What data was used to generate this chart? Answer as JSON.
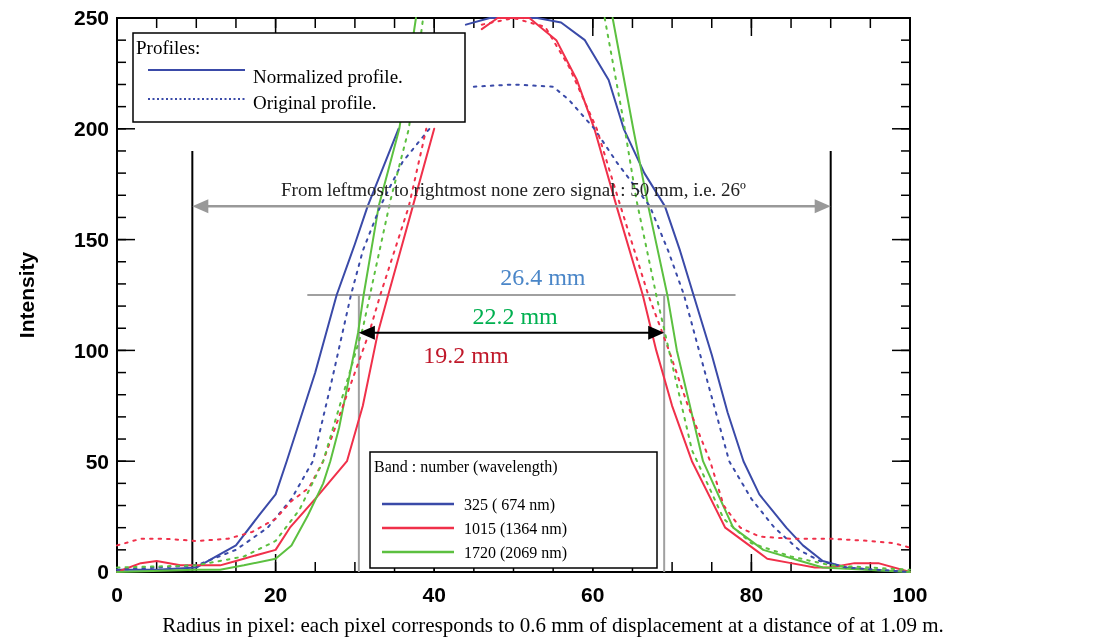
{
  "chart_data": {
    "type": "line",
    "xlabel": "Radius in pixel: each pixel corresponds to 0.6 mm of displacement at a distance of at 1.09 m.",
    "ylabel": "Intensity",
    "legend_title": "Band : number (wavelength)",
    "legend": "bottom",
    "grid": false,
    "xlim": [
      0,
      100
    ],
    "xticks": [
      0,
      20,
      40,
      60,
      80,
      100
    ],
    "ylim": [
      0,
      250
    ],
    "yticks": [
      0,
      50,
      100,
      150,
      200,
      250
    ],
    "series": [
      {
        "name": "325 ( 674 nm)",
        "color": "#3a4aa8",
        "line_style": "solid",
        "x": [
          0,
          5,
          10,
          12,
          15,
          18,
          20,
          21.4,
          25,
          27.7,
          30,
          31.6,
          33.5,
          35.5,
          38,
          41,
          44,
          47,
          50,
          53,
          56,
          59,
          62,
          63.9,
          66.5,
          69.1,
          71,
          72.7,
          75,
          77,
          79,
          81,
          84.4,
          86.5,
          89,
          92,
          95,
          100
        ],
        "values": [
          1,
          1,
          2,
          6,
          12,
          26,
          35,
          50,
          90,
          125,
          148,
          165,
          182,
          200,
          null,
          null,
          247,
          250,
          250,
          250,
          248,
          240,
          222,
          200,
          180,
          165,
          145,
          125,
          98,
          72,
          50,
          35,
          20,
          12,
          5,
          2,
          1,
          0
        ]
      },
      {
        "name": "1015 (1364 nm)",
        "color": "#f0304a",
        "line_style": "solid",
        "x": [
          0,
          3,
          5,
          8,
          10,
          13,
          15,
          18,
          20,
          21.8,
          25,
          29,
          31,
          32.9,
          34.2,
          37.3,
          40,
          43.6,
          46,
          48,
          50,
          52,
          55.4,
          58,
          60.2,
          63,
          66.3,
          68,
          70,
          72.5,
          76.7,
          80.5,
          82,
          85,
          88,
          90,
          93,
          96,
          100
        ],
        "values": [
          0,
          4,
          5,
          3,
          3,
          3,
          5,
          8,
          10,
          20,
          33,
          50,
          75,
          108,
          125,
          165,
          200,
          null,
          245,
          250,
          250,
          250,
          240,
          222,
          200,
          165,
          125,
          100,
          75,
          50,
          20,
          10,
          6,
          4,
          2,
          2,
          4,
          4,
          0
        ]
      },
      {
        "name": "1720 (2069 nm)",
        "color": "#5cc040",
        "line_style": "solid",
        "x": [
          0,
          10,
          13,
          16,
          20,
          22,
          24,
          26,
          26.9,
          28,
          30.4,
          31.1,
          33,
          35.6,
          37.7,
          50,
          62.5,
          65.1,
          67,
          69.4,
          70.6,
          73.9,
          77.7,
          81.5,
          86.2,
          89,
          100
        ],
        "values": [
          0,
          1,
          1,
          3,
          6,
          12,
          25,
          40,
          50,
          65,
          108,
          125,
          165,
          200,
          250,
          null,
          250,
          200,
          165,
          125,
          100,
          50,
          20,
          10,
          5,
          2,
          0
        ]
      },
      {
        "color": "#3a4aa8",
        "line_style": "dotted",
        "x": [
          0,
          10,
          15,
          19,
          22,
          24.7,
          27,
          29.5,
          31,
          33.2,
          36,
          39.4,
          42,
          45,
          50,
          55,
          57,
          60.2,
          63,
          67.2,
          69.5,
          71.5,
          74,
          77.2,
          80,
          82.9,
          86,
          88.6,
          92,
          100
        ],
        "values": [
          1,
          3,
          10,
          20,
          33,
          50,
          85,
          125,
          145,
          165,
          185,
          200,
          null,
          219,
          220,
          219,
          213,
          200,
          185,
          165,
          145,
          125,
          92,
          50,
          33,
          20,
          10,
          5,
          2,
          0
        ]
      },
      {
        "color": "#f0304a",
        "line_style": "dotted",
        "x": [
          0,
          3,
          6,
          10,
          14,
          17,
          20,
          22,
          24.2,
          26,
          28,
          30,
          31.8,
          33.2,
          36.8,
          39,
          42,
          46,
          50,
          54,
          57,
          60.5,
          63.5,
          67,
          69.6,
          72,
          74.8,
          76.5,
          78.6,
          81,
          85,
          90,
          95,
          98,
          100
        ],
        "values": [
          12,
          15,
          15,
          14,
          15,
          18,
          24,
          32,
          38,
          50,
          70,
          90,
          108,
          125,
          165,
          200,
          null,
          247,
          250,
          246,
          228,
          200,
          165,
          125,
          100,
          75,
          50,
          30,
          20,
          16,
          15,
          15,
          14,
          13,
          11
        ]
      },
      {
        "color": "#5cc040",
        "line_style": "dotted",
        "x": [
          0,
          10,
          16,
          20,
          23,
          26,
          28.5,
          31,
          32.5,
          34.5,
          36.8,
          38.6,
          50,
          61.5,
          63.8,
          65.5,
          68,
          72.5,
          76.5,
          80,
          85,
          90,
          100
        ],
        "values": [
          2,
          3,
          7,
          14,
          28,
          50,
          80,
          110,
          135,
          168,
          200,
          250,
          null,
          250,
          205,
          168,
          125,
          55,
          24,
          13,
          7,
          3,
          1
        ]
      }
    ],
    "ref_lines": [
      {
        "axis": "x",
        "value": 9.5,
        "color": "#000000"
      },
      {
        "axis": "x",
        "value": 90,
        "color": "#000000"
      },
      {
        "axis": "x",
        "value": 30.5,
        "color": "#a0a0a0"
      },
      {
        "axis": "x",
        "value": 69,
        "color": "#a0a0a0"
      },
      {
        "axis": "y",
        "value": 125,
        "color": "#a0a0a0"
      }
    ],
    "annotations": [
      "From leftmost to rightmost none zero signal : 50 mm, i.e. 26º",
      {
        "text": "26.4 mm",
        "x": 53.7,
        "y": 125
      },
      "22.2 mm",
      "19.2 mm",
      "Profiles:",
      "Normalized profile.",
      "Original profile."
    ]
  }
}
